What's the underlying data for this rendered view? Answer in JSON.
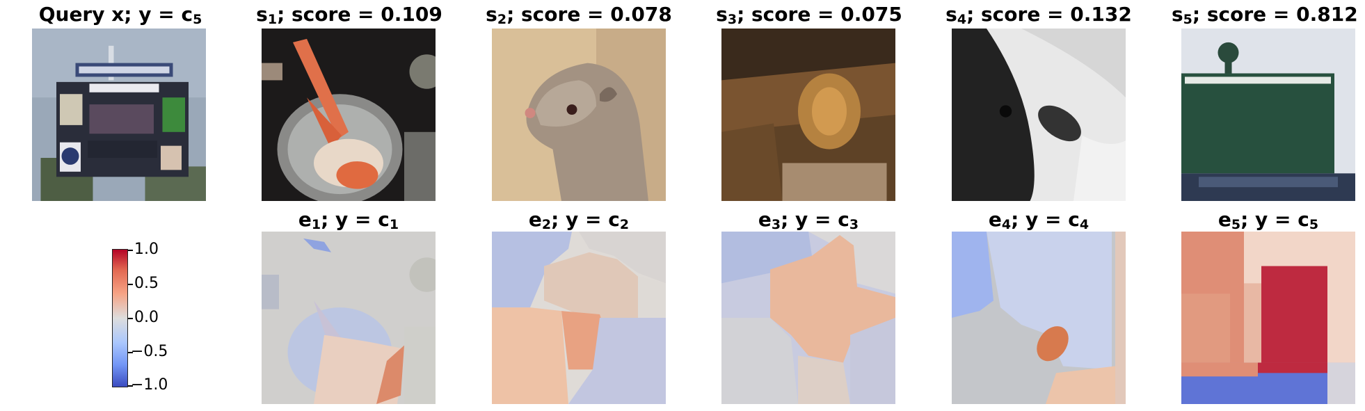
{
  "top_row": [
    {
      "title": "Query x; y = c",
      "sub": "5",
      "image": "scoreboard-photo"
    },
    {
      "title": "s",
      "sub": "1",
      "tail": "; score = 0.109",
      "score": 0.109,
      "image": "crab-pot-photo"
    },
    {
      "title": "s",
      "sub": "2",
      "tail": "; score = 0.078",
      "score": 0.078,
      "image": "mongoose-photo"
    },
    {
      "title": "s",
      "sub": "3",
      "tail": "; score = 0.075",
      "score": 0.075,
      "image": "lion-photo"
    },
    {
      "title": "s",
      "sub": "4",
      "tail": "; score = 0.132",
      "score": 0.132,
      "image": "grayscale-closeup-photo"
    },
    {
      "title": "s",
      "sub": "5",
      "tail": "; score = 0.812",
      "score": 0.812,
      "image": "ballpark-scoreboard-photo"
    }
  ],
  "bottom_row": [
    {
      "title": "e",
      "sub": "1",
      "mid": "; y = c",
      "sub2": "1",
      "image": "explanation-heatmap-1"
    },
    {
      "title": "e",
      "sub": "2",
      "mid": "; y = c",
      "sub2": "2",
      "image": "explanation-heatmap-2"
    },
    {
      "title": "e",
      "sub": "3",
      "mid": "; y = c",
      "sub2": "3",
      "image": "explanation-heatmap-3"
    },
    {
      "title": "e",
      "sub": "4",
      "mid": "; y = c",
      "sub2": "4",
      "image": "explanation-heatmap-4"
    },
    {
      "title": "e",
      "sub": "5",
      "mid": "; y = c",
      "sub2": "5",
      "image": "explanation-heatmap-5"
    }
  ],
  "colorbar": {
    "colormap": "coolwarm",
    "min": -1.0,
    "max": 1.0,
    "ticks": [
      "1.0",
      "0.5",
      "0.0",
      "−0.5",
      "−1.0"
    ],
    "tick_values": [
      1.0,
      0.5,
      0.0,
      -0.5,
      -1.0
    ],
    "colors": {
      "low": "#3b4cc0",
      "mid": "#dddddd",
      "high": "#b40426"
    }
  },
  "chart_data": {
    "type": "heatmap",
    "title": "",
    "scores": [
      0.109,
      0.078,
      0.075,
      0.132,
      0.812
    ],
    "colorbar_range": [
      -1.0,
      1.0
    ],
    "colorbar_ticks": [
      1.0,
      0.5,
      0.0,
      -0.5,
      -1.0
    ]
  }
}
